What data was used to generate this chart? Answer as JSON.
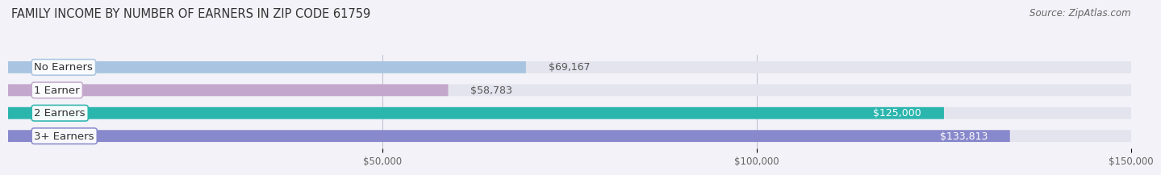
{
  "title": "FAMILY INCOME BY NUMBER OF EARNERS IN ZIP CODE 61759",
  "source": "Source: ZipAtlas.com",
  "categories": [
    "No Earners",
    "1 Earner",
    "2 Earners",
    "3+ Earners"
  ],
  "values": [
    69167,
    58783,
    125000,
    133813
  ],
  "bar_colors": [
    "#a8c4e0",
    "#c4a8cc",
    "#2ab5ad",
    "#8888cc"
  ],
  "bar_bg_color": "#e4e4ee",
  "background_color": "#f2f2f8",
  "value_label_colors": [
    "#666666",
    "#666666",
    "#ffffff",
    "#ffffff"
  ],
  "xlim_min": 0,
  "xlim_max": 150000,
  "xticks": [
    50000,
    100000,
    150000
  ],
  "xtick_labels": [
    "$50,000",
    "$100,000",
    "$150,000"
  ],
  "title_fontsize": 10.5,
  "source_fontsize": 8.5,
  "bar_label_fontsize": 9.5,
  "value_fontsize": 9
}
